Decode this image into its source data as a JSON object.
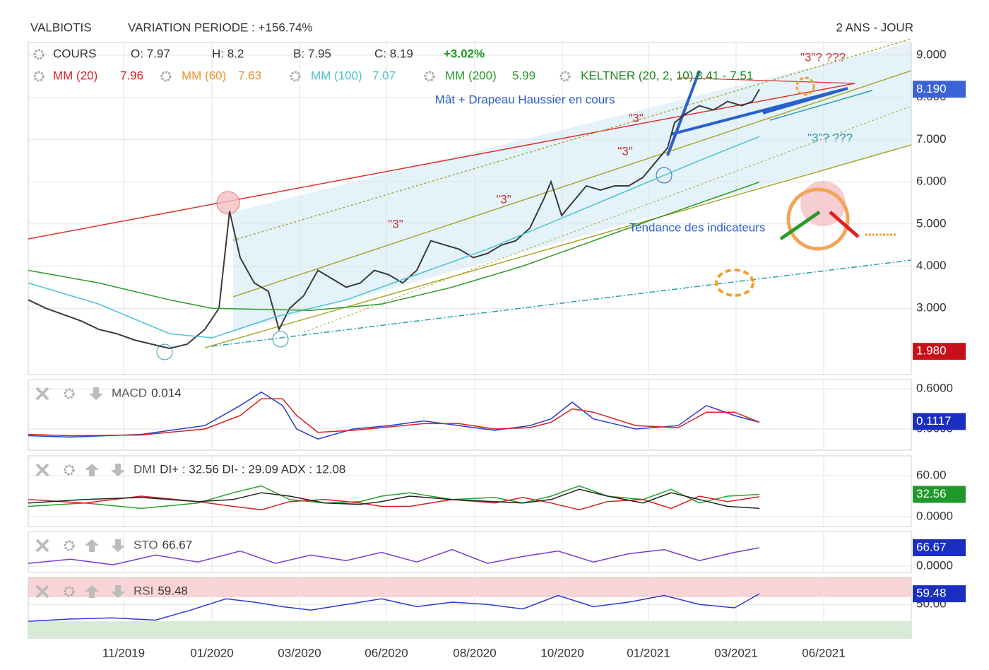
{
  "header": {
    "symbol": "VALBIOTIS",
    "variation": "VARIATION PERIODE : +156.74%",
    "period": "2 ANS - JOUR"
  },
  "chart_data": [
    {
      "type": "line",
      "xlim": [
        0,
        1250
      ],
      "xticks": [
        {
          "value": 135,
          "label": "11/2019"
        },
        {
          "value": 260,
          "label": "01/2020"
        },
        {
          "value": 384,
          "label": "03/2020"
        },
        {
          "value": 507,
          "label": "06/2020"
        },
        {
          "value": 632,
          "label": "08/2020"
        },
        {
          "value": 756,
          "label": "10/2020"
        },
        {
          "value": 878,
          "label": "01/2021"
        },
        {
          "value": 1002,
          "label": "03/2021"
        },
        {
          "value": 1126,
          "label": "06/2021"
        }
      ],
      "ylim": [
        1.43,
        9.3
      ],
      "yticks": [
        {
          "value": 3,
          "label": "3.000"
        },
        {
          "value": 4,
          "label": "4.000"
        },
        {
          "value": 5,
          "label": "5.000"
        },
        {
          "value": 6,
          "label": "6.000"
        },
        {
          "value": 7,
          "label": "7.000"
        },
        {
          "value": 8,
          "label": "8.000"
        },
        {
          "value": 9,
          "label": "9.000"
        }
      ],
      "grid": true,
      "ohlc": [
        "O: 7.97",
        "H: 8.2",
        "B: 7.95",
        "C: 8.19"
      ],
      "change": "+3.02%",
      "series": [
        {
          "name": "COURS",
          "color": "#3a3a3a",
          "x": [
            0,
            25,
            50,
            75,
            100,
            125,
            150,
            175,
            200,
            225,
            250,
            270,
            285,
            300,
            320,
            340,
            355,
            370,
            390,
            410,
            430,
            450,
            470,
            490,
            510,
            530,
            550,
            570,
            590,
            610,
            630,
            650,
            670,
            690,
            710,
            730,
            740,
            755,
            770,
            790,
            810,
            830,
            850,
            870,
            890,
            905,
            915,
            930,
            950,
            970,
            990,
            1010,
            1025,
            1035
          ],
          "values": [
            3.2,
            3.0,
            2.85,
            2.7,
            2.5,
            2.4,
            2.25,
            2.15,
            2.05,
            2.15,
            2.5,
            3.0,
            5.3,
            4.2,
            3.6,
            3.4,
            2.5,
            3.0,
            3.3,
            3.9,
            3.7,
            3.5,
            3.6,
            3.9,
            3.8,
            3.6,
            3.9,
            4.6,
            4.5,
            4.4,
            4.2,
            4.3,
            4.5,
            4.6,
            4.9,
            5.6,
            6.0,
            5.2,
            5.5,
            5.9,
            5.8,
            5.9,
            5.9,
            6.1,
            6.5,
            6.8,
            7.4,
            7.6,
            7.8,
            7.7,
            7.9,
            7.8,
            7.9,
            8.19
          ]
        },
        {
          "name": "MM (100)",
          "color": "#4cc3d0",
          "label": 7.07,
          "x": [
            0,
            100,
            200,
            260,
            350,
            450,
            550,
            650,
            750,
            850,
            950,
            1035
          ],
          "values": [
            3.6,
            3.1,
            2.4,
            2.3,
            2.8,
            3.2,
            3.8,
            4.4,
            5.1,
            5.8,
            6.5,
            7.07
          ]
        },
        {
          "name": "MM (200)",
          "color": "#2a9a2a",
          "label": 5.99,
          "x": [
            0,
            100,
            200,
            260,
            400,
            500,
            600,
            700,
            800,
            900,
            1035
          ],
          "values": [
            3.9,
            3.6,
            3.2,
            3.0,
            2.95,
            3.1,
            3.5,
            4.0,
            4.6,
            5.2,
            5.99
          ]
        }
      ],
      "legend": [
        {
          "name": "MM (20)",
          "value": 7.96,
          "color": "#d62020"
        },
        {
          "name": "MM (60)",
          "value": 7.63,
          "color": "#f0902a"
        },
        {
          "name": "KELTNER (20, 2, 10)",
          "value": "8.41 - 7.51",
          "color": "#1f8a1f"
        }
      ],
      "price_labels": [
        {
          "value": 8.19,
          "label": "8.190",
          "color": "#3b63d6"
        },
        {
          "value": 1.98,
          "label": "1.980",
          "color": "#c8101a"
        }
      ],
      "annotations": [
        "\"3\"",
        "\"3\"",
        "\"3\"",
        "\"3\"",
        "\"3\"? ???",
        "\"3\"? ???",
        "Mât + Drapeau Haussier en cours",
        "Tendance des indicateurs"
      ]
    },
    {
      "type": "line",
      "title": "MACD",
      "value": 0.014,
      "ylim": [
        -0.316,
        0.737
      ],
      "yticks": [
        {
          "value": 0.6,
          "label": "0.6000"
        },
        {
          "value": 0,
          "label": "0.0000"
        }
      ],
      "last_value": 0.1117,
      "last_color": "#1a2fc0",
      "x": [
        0,
        60,
        160,
        250,
        300,
        330,
        360,
        380,
        410,
        460,
        510,
        560,
        610,
        660,
        710,
        740,
        770,
        800,
        860,
        920,
        960,
        1000,
        1035
      ],
      "series": [
        {
          "color": "#2a3ad0",
          "values": [
            -0.1,
            -0.12,
            -0.08,
            0.05,
            0.35,
            0.55,
            0.35,
            0.0,
            -0.15,
            0.0,
            0.05,
            0.12,
            0.05,
            -0.02,
            0.05,
            0.15,
            0.4,
            0.15,
            0.0,
            0.05,
            0.35,
            0.2,
            0.1
          ]
        },
        {
          "color": "#d62020",
          "values": [
            -0.08,
            -0.1,
            -0.09,
            0.0,
            0.2,
            0.45,
            0.45,
            0.2,
            -0.05,
            -0.02,
            0.03,
            0.08,
            0.08,
            0.0,
            0.02,
            0.1,
            0.3,
            0.25,
            0.05,
            0.02,
            0.25,
            0.25,
            0.1
          ]
        }
      ]
    },
    {
      "type": "line",
      "title": "DMI",
      "value": "DI+ : 32.56 DI- : 29.09 ADX : 12.08",
      "ylim": [
        -14.5,
        89
      ],
      "yticks": [
        {
          "value": 60,
          "label": "60.00"
        },
        {
          "value": 0,
          "label": "0.0000"
        }
      ],
      "last_value": 32.56,
      "last_color": "#1f9a2a",
      "x": [
        0,
        80,
        160,
        240,
        290,
        330,
        370,
        420,
        470,
        500,
        540,
        600,
        660,
        700,
        740,
        780,
        820,
        870,
        910,
        950,
        990,
        1035
      ],
      "series": [
        {
          "color": "#2aa02a",
          "values": [
            15,
            20,
            12,
            20,
            35,
            45,
            25,
            20,
            22,
            30,
            35,
            25,
            28,
            20,
            30,
            45,
            30,
            25,
            40,
            20,
            30,
            32.56
          ]
        },
        {
          "color": "#d62020",
          "values": [
            25,
            20,
            30,
            22,
            15,
            10,
            22,
            25,
            20,
            15,
            15,
            25,
            20,
            28,
            20,
            10,
            22,
            25,
            12,
            30,
            22,
            29.09
          ]
        },
        {
          "color": "#222222",
          "values": [
            20,
            25,
            28,
            22,
            25,
            35,
            30,
            20,
            18,
            22,
            30,
            25,
            22,
            20,
            25,
            40,
            30,
            20,
            35,
            25,
            15,
            12.08
          ]
        }
      ]
    },
    {
      "type": "line",
      "title": "STO",
      "value": 66.67,
      "ylim": [
        -23,
        125.6
      ],
      "yticks": [
        {
          "value": 0,
          "label": "0.0000"
        }
      ],
      "last_value": 66.67,
      "last_color": "#1a2fc0",
      "x": [
        0,
        60,
        120,
        180,
        240,
        300,
        350,
        400,
        450,
        500,
        550,
        600,
        650,
        700,
        750,
        800,
        850,
        900,
        950,
        1000,
        1035
      ],
      "series": [
        {
          "color": "#7a3ad0",
          "values": [
            10,
            25,
            5,
            40,
            15,
            55,
            10,
            40,
            20,
            50,
            15,
            60,
            10,
            35,
            55,
            15,
            45,
            60,
            20,
            50,
            66.67
          ]
        }
      ]
    },
    {
      "type": "line",
      "title": "RSI",
      "value": 59.48,
      "ylim": [
        20,
        74
      ],
      "yticks": [
        {
          "value": 50,
          "label": "50.00"
        }
      ],
      "last_value": 59.48,
      "last_color": "#1a2fc0",
      "x": [
        0,
        60,
        120,
        180,
        230,
        280,
        320,
        360,
        400,
        450,
        500,
        550,
        600,
        650,
        700,
        750,
        800,
        850,
        900,
        950,
        1000,
        1035
      ],
      "series": [
        {
          "color": "#2a3ad0",
          "values": [
            35,
            37,
            38,
            36,
            45,
            55,
            52,
            48,
            45,
            50,
            55,
            48,
            52,
            50,
            46,
            58,
            48,
            52,
            58,
            50,
            47,
            59.48
          ]
        }
      ]
    }
  ]
}
